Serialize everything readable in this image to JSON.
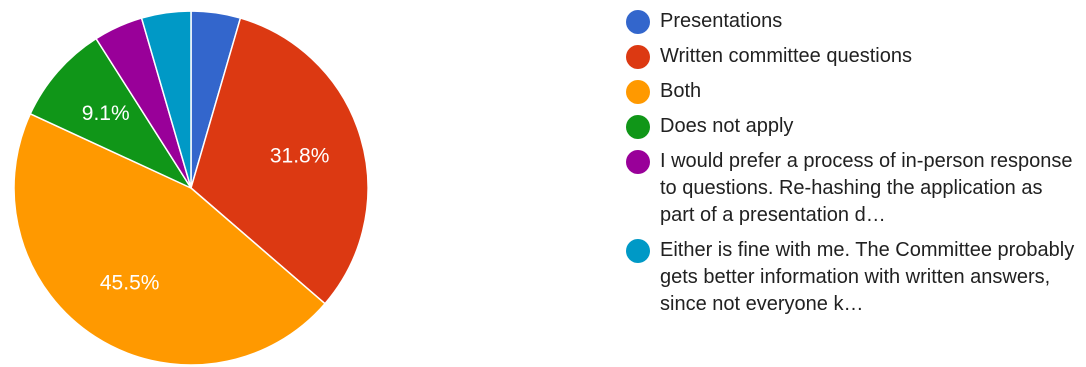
{
  "chart_data": {
    "type": "pie",
    "title": "",
    "start": "top",
    "direction": "clockwise",
    "slices": [
      {
        "label": "Presentations",
        "percent": 4.5,
        "color": "#3366cc",
        "data_label": ""
      },
      {
        "label": "Written committee questions",
        "percent": 31.8,
        "color": "#dc3912",
        "data_label": "31.8%"
      },
      {
        "label": "Both",
        "percent": 45.5,
        "color": "#ff9900",
        "data_label": "45.5%"
      },
      {
        "label": "Does not apply",
        "percent": 9.1,
        "color": "#109618",
        "data_label": "9.1%"
      },
      {
        "label": "I would prefer a process of in-person response to questions. Re-hashing the application as part of a presentation d…",
        "percent": 4.5,
        "color": "#990099",
        "data_label": ""
      },
      {
        "label": "Either is fine with me. The Committee probably gets better information with written answers, since not everyone k…",
        "percent": 4.5,
        "color": "#0099c6",
        "data_label": ""
      }
    ],
    "legend_position": "right"
  }
}
